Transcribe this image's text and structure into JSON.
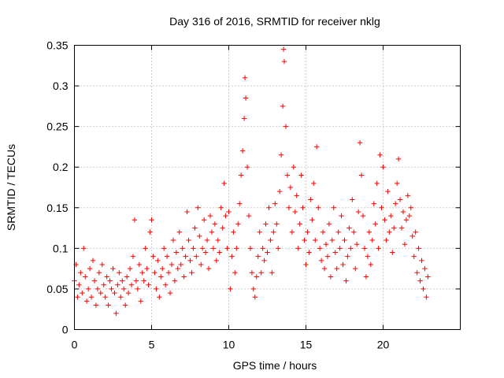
{
  "chart_data": {
    "type": "scatter",
    "title": "Day 316 of 2016, SRMTID for receiver nklg",
    "xlabel": "GPS time / hours",
    "ylabel": "SRMTID / TECUs",
    "xlim": [
      0,
      25
    ],
    "ylim": [
      0,
      0.35
    ],
    "xticks": [
      0,
      5,
      10,
      15,
      20
    ],
    "yticks": [
      0,
      0.05,
      0.1,
      0.15,
      0.2,
      0.25,
      0.3,
      0.35
    ],
    "xtick_labels": [
      "0",
      "5",
      "10",
      "15",
      "20"
    ],
    "ytick_labels": [
      "0",
      "0.05",
      "0.1",
      "0.15",
      "0.2",
      "0.25",
      "0.3",
      "0.35"
    ],
    "grid": true,
    "marker": "+",
    "color": "#ff0000",
    "series": [
      {
        "name": "SRMTID",
        "points": [
          [
            0.0,
            0.06
          ],
          [
            0.1,
            0.08
          ],
          [
            0.2,
            0.04
          ],
          [
            0.3,
            0.055
          ],
          [
            0.4,
            0.07
          ],
          [
            0.5,
            0.045
          ],
          [
            0.6,
            0.1
          ],
          [
            0.7,
            0.065
          ],
          [
            0.8,
            0.035
          ],
          [
            0.9,
            0.05
          ],
          [
            1.0,
            0.075
          ],
          [
            1.1,
            0.04
          ],
          [
            1.2,
            0.085
          ],
          [
            1.3,
            0.06
          ],
          [
            1.4,
            0.03
          ],
          [
            1.5,
            0.05
          ],
          [
            1.6,
            0.07
          ],
          [
            1.7,
            0.045
          ],
          [
            1.8,
            0.08
          ],
          [
            1.9,
            0.055
          ],
          [
            2.0,
            0.04
          ],
          [
            2.1,
            0.065
          ],
          [
            2.2,
            0.03
          ],
          [
            2.3,
            0.06
          ],
          [
            2.4,
            0.05
          ],
          [
            2.5,
            0.075
          ],
          [
            2.6,
            0.045
          ],
          [
            2.7,
            0.02
          ],
          [
            2.8,
            0.055
          ],
          [
            2.9,
            0.07
          ],
          [
            3.0,
            0.04
          ],
          [
            3.1,
            0.06
          ],
          [
            3.2,
            0.05
          ],
          [
            3.3,
            0.03
          ],
          [
            3.4,
            0.065
          ],
          [
            3.5,
            0.045
          ],
          [
            3.6,
            0.075
          ],
          [
            3.7,
            0.055
          ],
          [
            3.8,
            0.09
          ],
          [
            3.9,
            0.135
          ],
          [
            4.0,
            0.06
          ],
          [
            4.1,
            0.05
          ],
          [
            4.2,
            0.08
          ],
          [
            4.3,
            0.035
          ],
          [
            4.4,
            0.07
          ],
          [
            4.5,
            0.06
          ],
          [
            4.6,
            0.1
          ],
          [
            4.7,
            0.075
          ],
          [
            4.8,
            0.055
          ],
          [
            4.9,
            0.12
          ],
          [
            5.0,
            0.135
          ],
          [
            5.1,
            0.09
          ],
          [
            5.2,
            0.07
          ],
          [
            5.3,
            0.05
          ],
          [
            5.4,
            0.085
          ],
          [
            5.5,
            0.04
          ],
          [
            5.6,
            0.065
          ],
          [
            5.7,
            0.075
          ],
          [
            5.8,
            0.1
          ],
          [
            5.9,
            0.055
          ],
          [
            6.0,
            0.09
          ],
          [
            6.1,
            0.07
          ],
          [
            6.2,
            0.045
          ],
          [
            6.3,
            0.08
          ],
          [
            6.4,
            0.11
          ],
          [
            6.5,
            0.06
          ],
          [
            6.6,
            0.095
          ],
          [
            6.7,
            0.075
          ],
          [
            6.8,
            0.12
          ],
          [
            6.9,
            0.08
          ],
          [
            7.0,
            0.1
          ],
          [
            7.1,
            0.065
          ],
          [
            7.2,
            0.09
          ],
          [
            7.3,
            0.145
          ],
          [
            7.4,
            0.11
          ],
          [
            7.5,
            0.085
          ],
          [
            7.6,
            0.07
          ],
          [
            7.7,
            0.1
          ],
          [
            7.8,
            0.125
          ],
          [
            7.9,
            0.09
          ],
          [
            8.0,
            0.15
          ],
          [
            8.1,
            0.115
          ],
          [
            8.2,
            0.08
          ],
          [
            8.3,
            0.1
          ],
          [
            8.4,
            0.135
          ],
          [
            8.5,
            0.095
          ],
          [
            8.6,
            0.11
          ],
          [
            8.7,
            0.075
          ],
          [
            8.8,
            0.14
          ],
          [
            8.9,
            0.12
          ],
          [
            9.0,
            0.1
          ],
          [
            9.1,
            0.13
          ],
          [
            9.2,
            0.085
          ],
          [
            9.3,
            0.11
          ],
          [
            9.4,
            0.095
          ],
          [
            9.5,
            0.15
          ],
          [
            9.6,
            0.125
          ],
          [
            9.7,
            0.18
          ],
          [
            9.8,
            0.14
          ],
          [
            9.9,
            0.1
          ],
          [
            10.0,
            0.145
          ],
          [
            10.1,
            0.05
          ],
          [
            10.2,
            0.09
          ],
          [
            10.3,
            0.12
          ],
          [
            10.4,
            0.07
          ],
          [
            10.5,
            0.1
          ],
          [
            10.6,
            0.13
          ],
          [
            10.7,
            0.155
          ],
          [
            10.8,
            0.19
          ],
          [
            10.9,
            0.22
          ],
          [
            11.0,
            0.26
          ],
          [
            11.05,
            0.31
          ],
          [
            11.1,
            0.285
          ],
          [
            11.2,
            0.2
          ],
          [
            11.3,
            0.14
          ],
          [
            11.4,
            0.1
          ],
          [
            11.5,
            0.07
          ],
          [
            11.6,
            0.05
          ],
          [
            11.7,
            0.04
          ],
          [
            11.8,
            0.065
          ],
          [
            11.9,
            0.09
          ],
          [
            12.0,
            0.12
          ],
          [
            12.1,
            0.07
          ],
          [
            12.2,
            0.1
          ],
          [
            12.3,
            0.085
          ],
          [
            12.4,
            0.13
          ],
          [
            12.5,
            0.095
          ],
          [
            12.6,
            0.15
          ],
          [
            12.7,
            0.11
          ],
          [
            12.8,
            0.07
          ],
          [
            12.9,
            0.12
          ],
          [
            13.0,
            0.155
          ],
          [
            13.1,
            0.13
          ],
          [
            13.2,
            0.1
          ],
          [
            13.3,
            0.17
          ],
          [
            13.4,
            0.215
          ],
          [
            13.5,
            0.275
          ],
          [
            13.55,
            0.345
          ],
          [
            13.6,
            0.33
          ],
          [
            13.7,
            0.25
          ],
          [
            13.8,
            0.19
          ],
          [
            13.9,
            0.15
          ],
          [
            14.0,
            0.175
          ],
          [
            14.1,
            0.12
          ],
          [
            14.2,
            0.2
          ],
          [
            14.3,
            0.145
          ],
          [
            14.4,
            0.165
          ],
          [
            14.5,
            0.1
          ],
          [
            14.6,
            0.13
          ],
          [
            14.7,
            0.19
          ],
          [
            14.8,
            0.15
          ],
          [
            14.9,
            0.11
          ],
          [
            15.0,
            0.08
          ],
          [
            15.1,
            0.12
          ],
          [
            15.2,
            0.095
          ],
          [
            15.3,
            0.16
          ],
          [
            15.4,
            0.135
          ],
          [
            15.5,
            0.18
          ],
          [
            15.6,
            0.11
          ],
          [
            15.7,
            0.225
          ],
          [
            15.8,
            0.15
          ],
          [
            15.9,
            0.1
          ],
          [
            16.0,
            0.085
          ],
          [
            16.1,
            0.12
          ],
          [
            16.2,
            0.075
          ],
          [
            16.3,
            0.105
          ],
          [
            16.4,
            0.09
          ],
          [
            16.5,
            0.13
          ],
          [
            16.6,
            0.065
          ],
          [
            16.7,
            0.11
          ],
          [
            16.8,
            0.15
          ],
          [
            16.9,
            0.095
          ],
          [
            17.0,
            0.075
          ],
          [
            17.1,
            0.12
          ],
          [
            17.2,
            0.1
          ],
          [
            17.3,
            0.14
          ],
          [
            17.4,
            0.08
          ],
          [
            17.5,
            0.11
          ],
          [
            17.6,
            0.06
          ],
          [
            17.7,
            0.09
          ],
          [
            17.8,
            0.125
          ],
          [
            17.9,
            0.1
          ],
          [
            18.0,
            0.16
          ],
          [
            18.1,
            0.12
          ],
          [
            18.2,
            0.075
          ],
          [
            18.3,
            0.105
          ],
          [
            18.4,
            0.145
          ],
          [
            18.5,
            0.23
          ],
          [
            18.6,
            0.19
          ],
          [
            18.7,
            0.14
          ],
          [
            18.8,
            0.1
          ],
          [
            18.9,
            0.065
          ],
          [
            19.0,
            0.09
          ],
          [
            19.1,
            0.12
          ],
          [
            19.2,
            0.08
          ],
          [
            19.3,
            0.11
          ],
          [
            19.4,
            0.155
          ],
          [
            19.5,
            0.13
          ],
          [
            19.6,
            0.18
          ],
          [
            19.7,
            0.1
          ],
          [
            19.8,
            0.215
          ],
          [
            19.9,
            0.15
          ],
          [
            20.0,
            0.2
          ],
          [
            20.1,
            0.135
          ],
          [
            20.2,
            0.11
          ],
          [
            20.3,
            0.17
          ],
          [
            20.4,
            0.12
          ],
          [
            20.5,
            0.14
          ],
          [
            20.6,
            0.095
          ],
          [
            20.7,
            0.125
          ],
          [
            20.8,
            0.155
          ],
          [
            20.9,
            0.18
          ],
          [
            21.0,
            0.21
          ],
          [
            21.1,
            0.16
          ],
          [
            21.2,
            0.125
          ],
          [
            21.3,
            0.145
          ],
          [
            21.4,
            0.105
          ],
          [
            21.5,
            0.135
          ],
          [
            21.6,
            0.165
          ],
          [
            21.7,
            0.14
          ],
          [
            21.8,
            0.15
          ],
          [
            21.9,
            0.115
          ],
          [
            22.0,
            0.09
          ],
          [
            22.1,
            0.12
          ],
          [
            22.2,
            0.07
          ],
          [
            22.3,
            0.1
          ],
          [
            22.4,
            0.06
          ],
          [
            22.5,
            0.085
          ],
          [
            22.6,
            0.05
          ],
          [
            22.7,
            0.075
          ],
          [
            22.8,
            0.04
          ],
          [
            22.9,
            0.065
          ]
        ]
      }
    ]
  }
}
